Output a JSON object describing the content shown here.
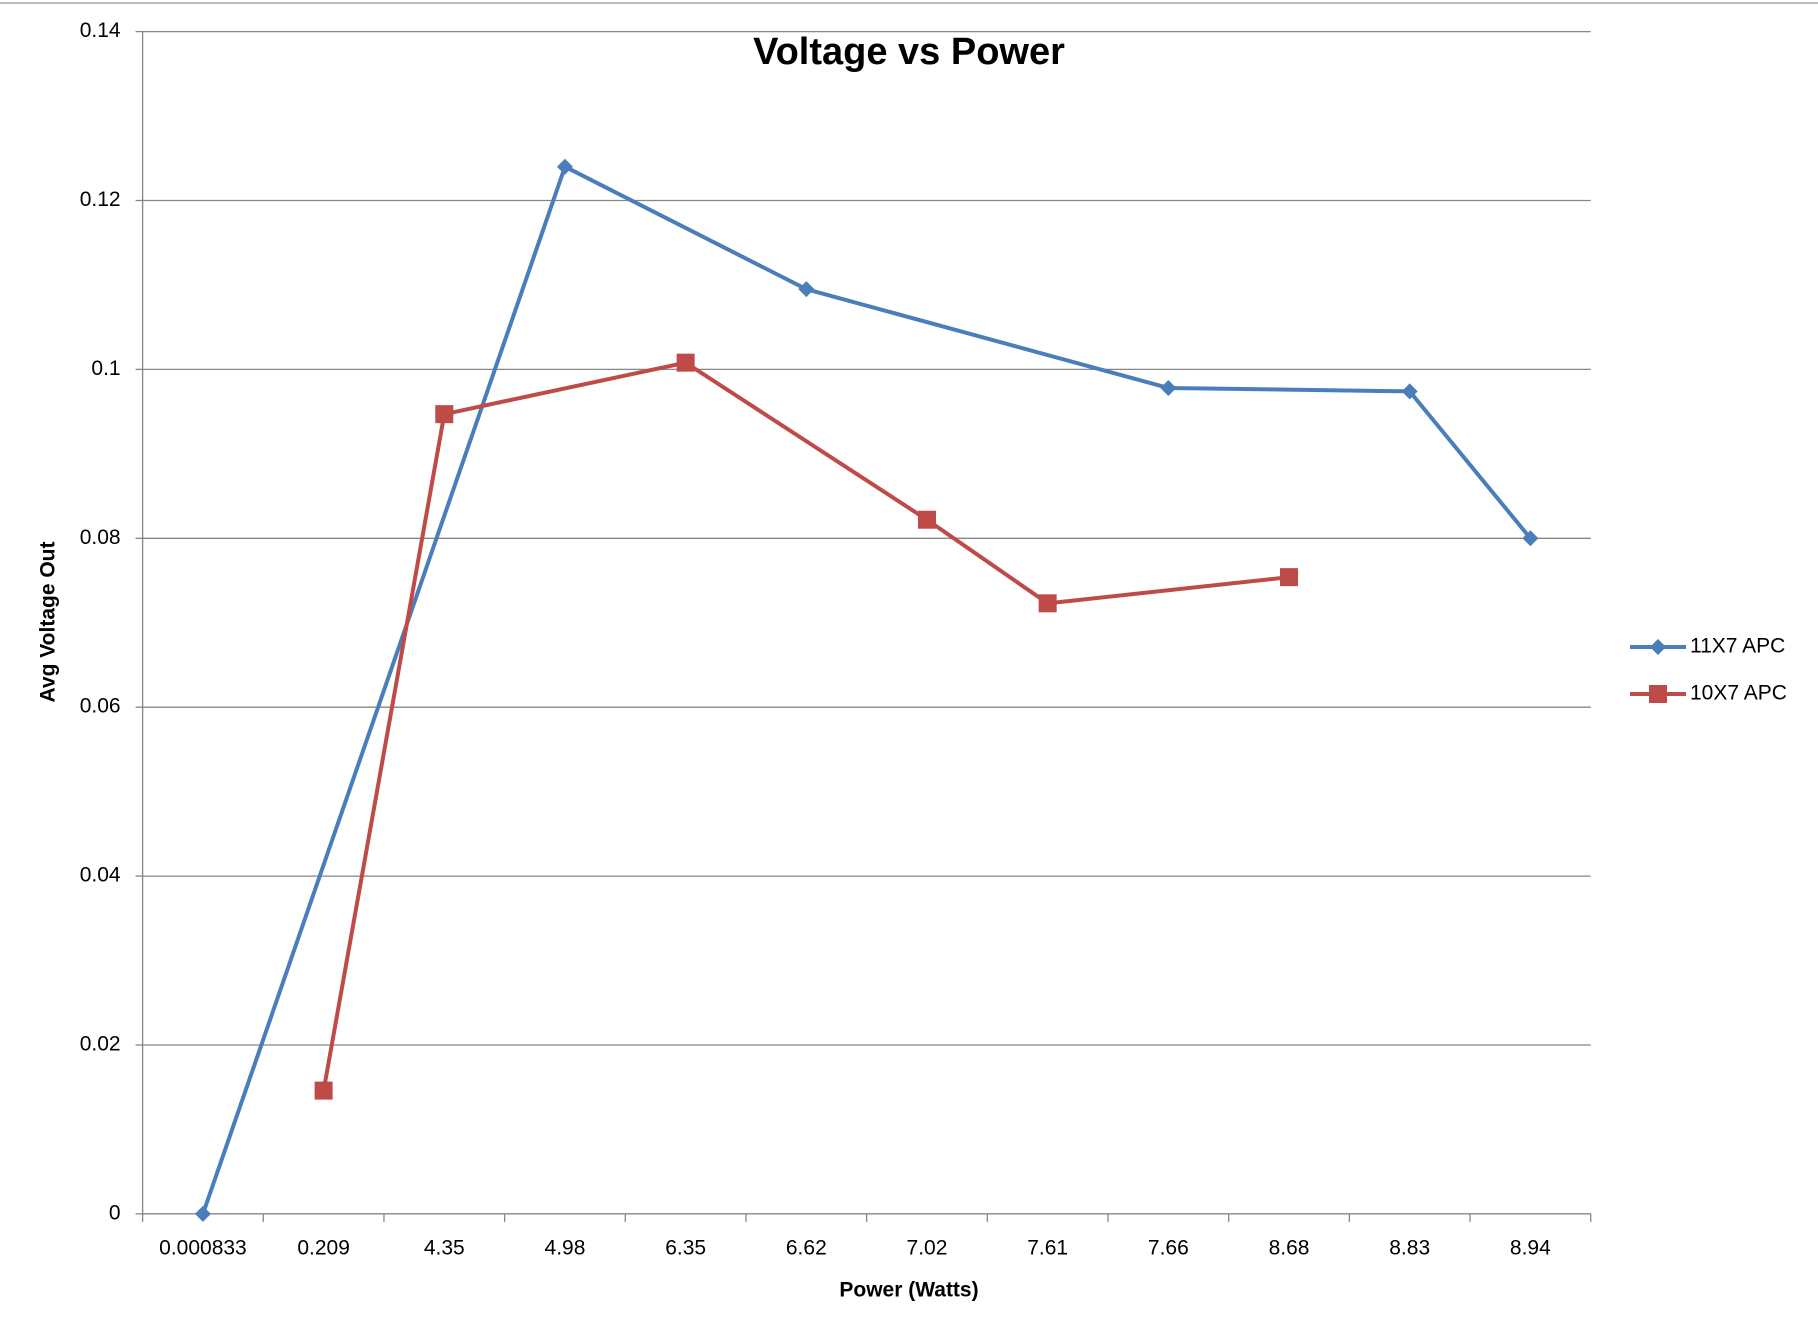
{
  "chart_data": {
    "type": "line",
    "title": "Voltage vs Power",
    "x_label": "Power (Watts)",
    "y_label": "Avg Voltage Out",
    "categories": [
      "0.000833",
      "0.209",
      "4.35",
      "4.98",
      "6.35",
      "6.62",
      "7.02",
      "7.61",
      "7.66",
      "8.68",
      "8.83",
      "8.94"
    ],
    "series": [
      {
        "name": "11X7 APC",
        "color": "#4a7ebb",
        "marker": "diamond",
        "values": [
          0,
          null,
          null,
          0.124,
          null,
          0.1095,
          null,
          null,
          0.0978,
          null,
          0.0974,
          0.08
        ]
      },
      {
        "name": "10X7 APC",
        "color": "#be4b48",
        "marker": "square",
        "values": [
          null,
          0.0146,
          0.0947,
          null,
          0.1008,
          null,
          0.0822,
          0.0723,
          null,
          0.0754,
          null,
          null
        ]
      }
    ],
    "ylim": [
      0,
      0.14
    ],
    "yticks": [
      0,
      0.02,
      0.04,
      0.06,
      0.08,
      0.1,
      0.12,
      0.14
    ],
    "grid": true,
    "legend": "right"
  }
}
